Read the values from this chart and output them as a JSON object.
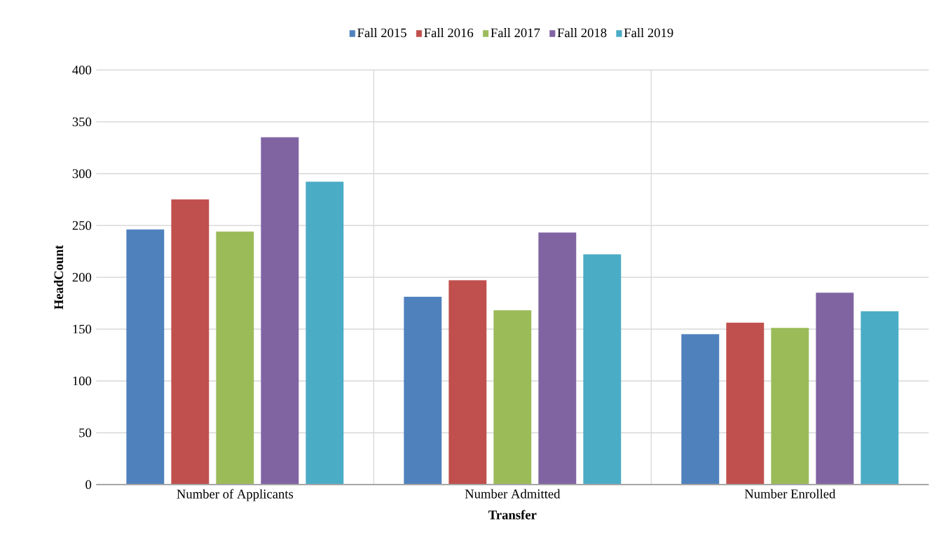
{
  "chart_data": {
    "type": "bar",
    "xlabel": "Transfer",
    "ylabel": "HeadCount",
    "categories": [
      "Number of Applicants",
      "Number Admitted",
      "Number Enrolled"
    ],
    "series": [
      {
        "name": "Fall 2015",
        "color": "#4f81bd",
        "values": [
          246,
          181,
          145
        ]
      },
      {
        "name": "Fall 2016",
        "color": "#c0504d",
        "values": [
          275,
          197,
          156
        ]
      },
      {
        "name": "Fall 2017",
        "color": "#9bbb59",
        "values": [
          244,
          168,
          151
        ]
      },
      {
        "name": "Fall 2018",
        "color": "#8064a2",
        "values": [
          335,
          243,
          185
        ]
      },
      {
        "name": "Fall 2019",
        "color": "#4bacc6",
        "values": [
          292,
          222,
          167
        ]
      }
    ],
    "ylim": [
      0,
      400
    ],
    "yticks": [
      0,
      50,
      100,
      150,
      200,
      250,
      300,
      350,
      400
    ],
    "grid": true,
    "legend": "top"
  }
}
